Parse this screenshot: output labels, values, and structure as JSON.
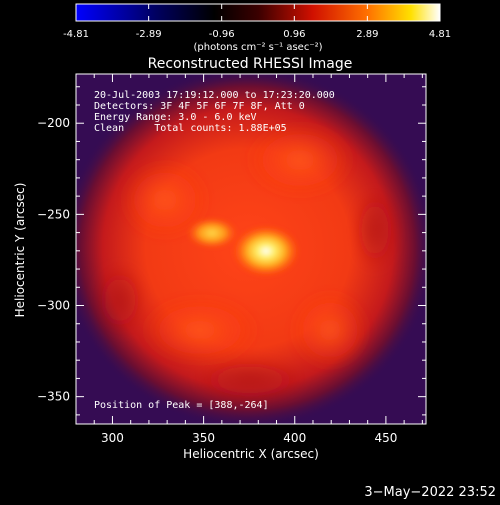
{
  "colorbar": {
    "tick_labels": [
      "-4.81",
      "-2.89",
      "-0.96",
      "0.96",
      "2.89",
      "4.81"
    ],
    "units_label": "(photons cm⁻² s⁻¹ asec⁻²)",
    "min": -4.81,
    "max": 4.81,
    "colormap": "blue-to-black-to-red-to-yellow-to-white"
  },
  "plot": {
    "title": "Reconstructed RHESSI Image",
    "info_lines": [
      "20-Jul-2003 17:19:12.000 to 17:23:20.000",
      "Detectors: 3F 4F 5F 6F 7F 8F, Att 0",
      "Energy Range: 3.0 - 6.0 keV",
      "Clean     Total counts: 1.88E+05"
    ],
    "peak_label": "Position of Peak = [388,-264]",
    "x_axis": {
      "label": "Heliocentric X (arcsec)",
      "ticks": [
        "300",
        "350",
        "400",
        "450"
      ],
      "range": [
        280,
        472
      ]
    },
    "y_axis": {
      "label": "Heliocentric Y (arcsec)",
      "ticks": [
        "−200",
        "−250",
        "−300",
        "−350"
      ],
      "range": [
        -365,
        -173
      ]
    },
    "peak_position": [
      388,
      -264
    ]
  },
  "footer": {
    "timestamp": "3−May−2022 23:52"
  }
}
